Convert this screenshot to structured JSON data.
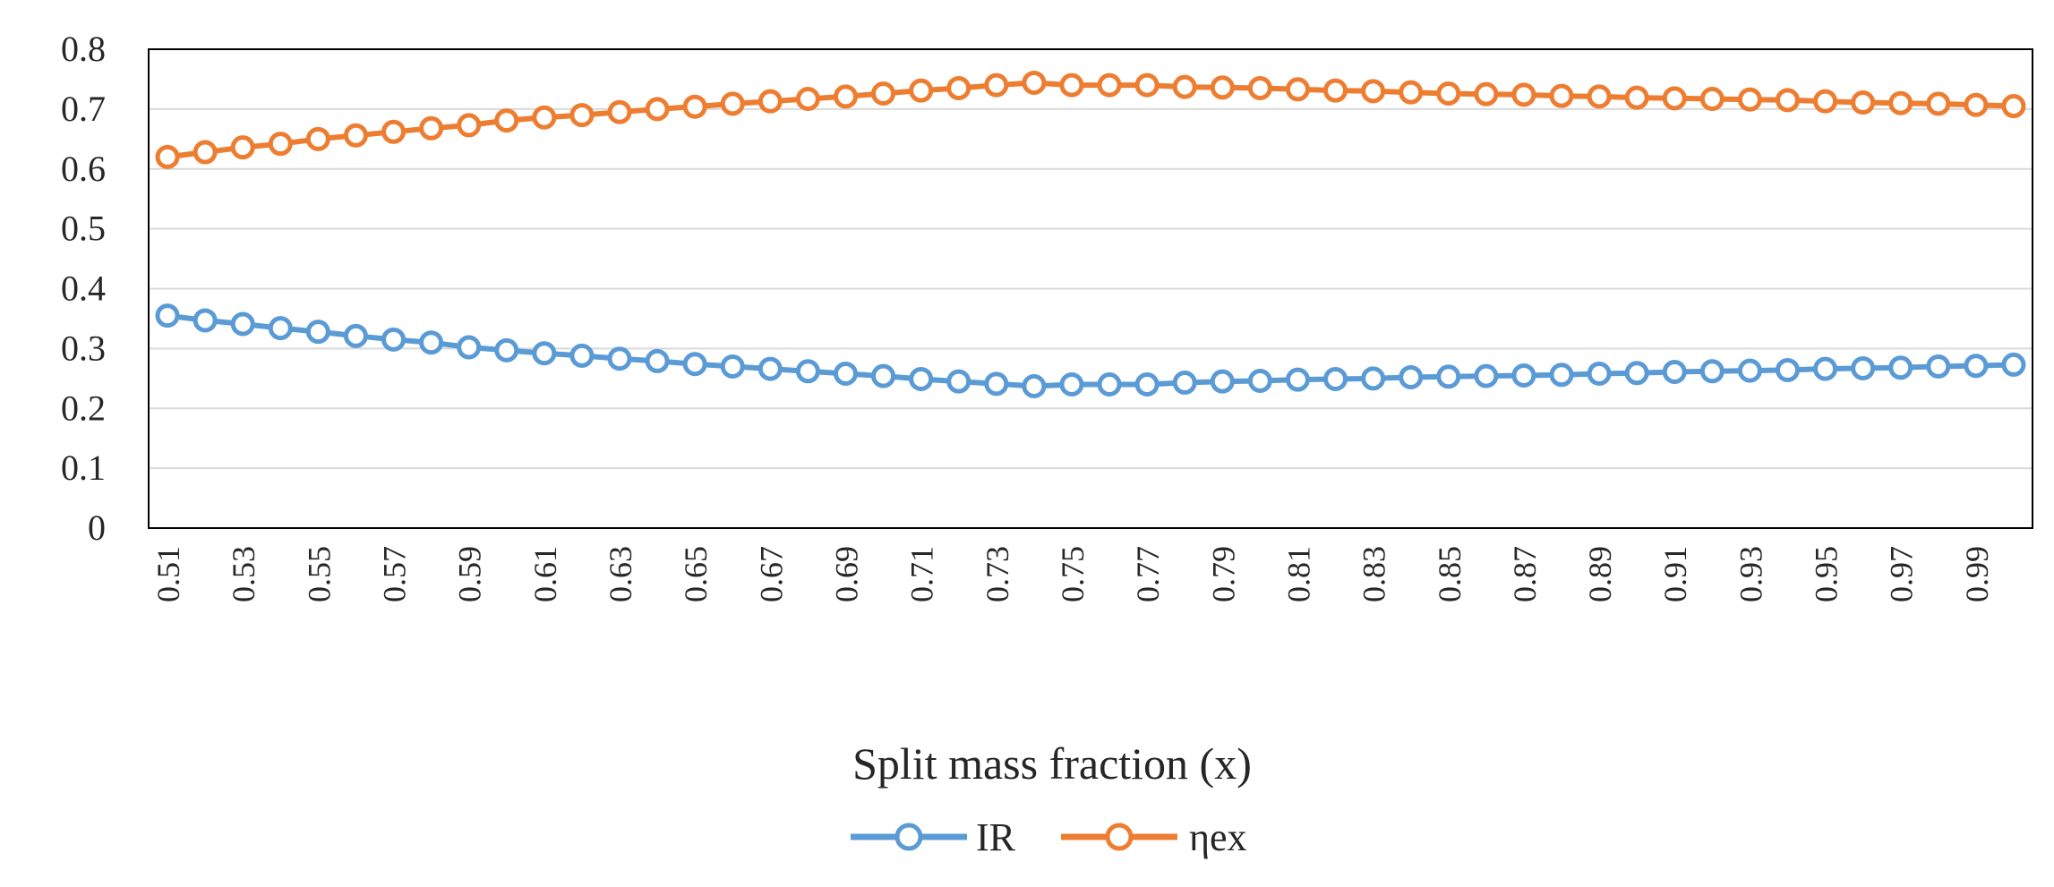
{
  "chart_data": {
    "type": "line",
    "title": "",
    "xlabel": "Split mass fraction (x)",
    "ylabel": "",
    "ylim": [
      0,
      0.8
    ],
    "ytick_values": [
      0,
      0.1,
      0.2,
      0.3,
      0.4,
      0.5,
      0.6,
      0.7,
      0.8
    ],
    "ytick_labels": [
      "0",
      "0.1",
      "0.2",
      "0.3",
      "0.4",
      "0.5",
      "0.6",
      "0.7",
      "0.8"
    ],
    "grid": "horizontal",
    "legend_position": "bottom-center",
    "categories": [
      "0.51",
      "0.52",
      "0.53",
      "0.54",
      "0.55",
      "0.56",
      "0.57",
      "0.58",
      "0.59",
      "0.6",
      "0.61",
      "0.62",
      "0.63",
      "0.64",
      "0.65",
      "0.66",
      "0.67",
      "0.68",
      "0.69",
      "0.7",
      "0.71",
      "0.72",
      "0.73",
      "0.74",
      "0.75",
      "0.76",
      "0.77",
      "0.78",
      "0.79",
      "0.8",
      "0.81",
      "0.82",
      "0.83",
      "0.84",
      "0.85",
      "0.86",
      "0.87",
      "0.88",
      "0.89",
      "0.9",
      "0.91",
      "0.92",
      "0.93",
      "0.94",
      "0.95",
      "0.96",
      "0.97",
      "0.98",
      "0.99",
      "1"
    ],
    "xtick_labels": [
      "0.51",
      "0.53",
      "0.55",
      "0.57",
      "0.59",
      "0.61",
      "0.63",
      "0.65",
      "0.67",
      "0.69",
      "0.71",
      "0.73",
      "0.75",
      "0.77",
      "0.79",
      "0.81",
      "0.83",
      "0.85",
      "0.87",
      "0.89",
      "0.91",
      "0.93",
      "0.95",
      "0.97",
      "0.99"
    ],
    "series": [
      {
        "name": "IR",
        "color": "#5B9BD5",
        "values": [
          0.355,
          0.347,
          0.341,
          0.334,
          0.328,
          0.321,
          0.315,
          0.31,
          0.302,
          0.297,
          0.292,
          0.288,
          0.283,
          0.279,
          0.274,
          0.27,
          0.266,
          0.262,
          0.258,
          0.254,
          0.249,
          0.245,
          0.241,
          0.237,
          0.24,
          0.24,
          0.24,
          0.243,
          0.245,
          0.246,
          0.248,
          0.249,
          0.25,
          0.252,
          0.253,
          0.254,
          0.255,
          0.256,
          0.258,
          0.259,
          0.261,
          0.262,
          0.263,
          0.264,
          0.266,
          0.267,
          0.268,
          0.27,
          0.271,
          0.273
        ]
      },
      {
        "name": "ηex",
        "color": "#ED7D31",
        "values": [
          0.62,
          0.628,
          0.636,
          0.642,
          0.65,
          0.656,
          0.662,
          0.668,
          0.673,
          0.681,
          0.686,
          0.69,
          0.695,
          0.7,
          0.704,
          0.709,
          0.713,
          0.717,
          0.721,
          0.726,
          0.731,
          0.735,
          0.74,
          0.744,
          0.74,
          0.74,
          0.74,
          0.737,
          0.736,
          0.735,
          0.733,
          0.731,
          0.73,
          0.728,
          0.726,
          0.725,
          0.724,
          0.722,
          0.721,
          0.719,
          0.718,
          0.717,
          0.716,
          0.715,
          0.713,
          0.711,
          0.71,
          0.709,
          0.707,
          0.705
        ]
      }
    ]
  }
}
